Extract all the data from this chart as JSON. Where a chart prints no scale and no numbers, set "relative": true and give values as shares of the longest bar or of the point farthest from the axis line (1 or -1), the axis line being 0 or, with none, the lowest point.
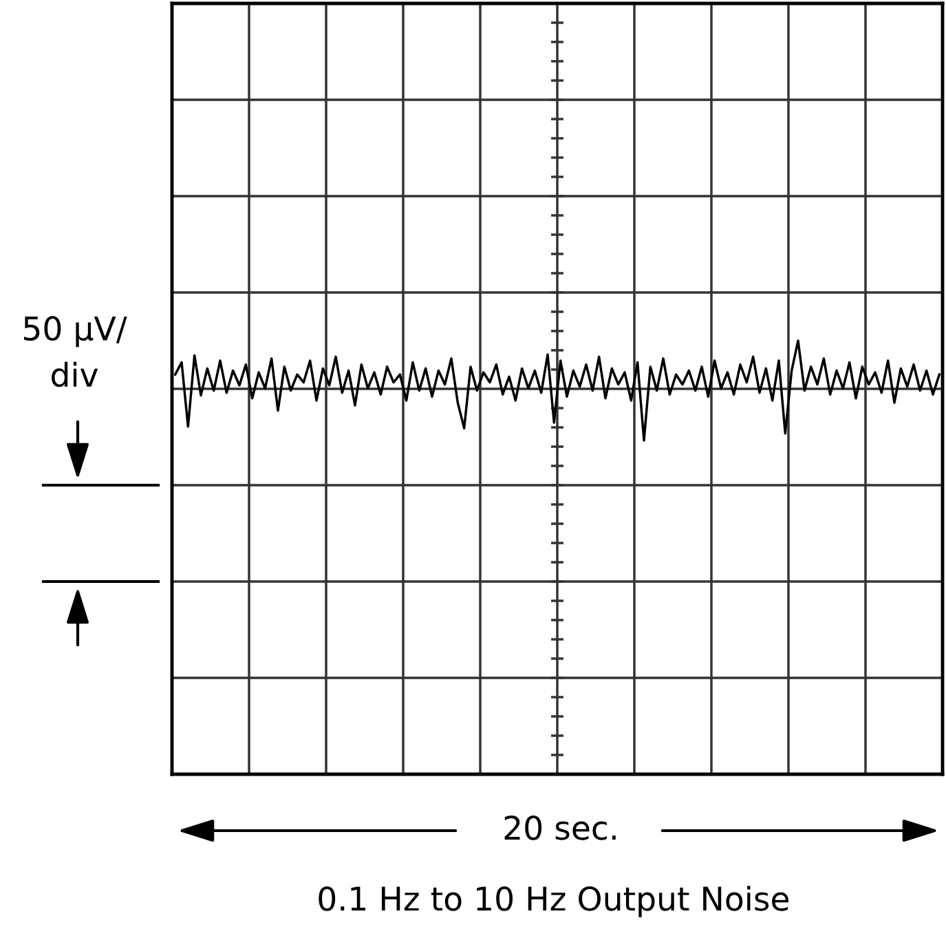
{
  "chart_data": {
    "type": "line",
    "title": "0.1 Hz to 10 Hz Output Noise",
    "relative": true,
    "grid": true,
    "annotations": [
      "50 μV/\ndiv",
      "20 sec."
    ],
    "categories": [
      null,
      null,
      null,
      null,
      null,
      null,
      null,
      null,
      null,
      null,
      null,
      null,
      null,
      null,
      null,
      null,
      null,
      null,
      null,
      null,
      null,
      null,
      null,
      null,
      null,
      null,
      null,
      null,
      null,
      null,
      null,
      null,
      null,
      null,
      null,
      null,
      null,
      null,
      null,
      null,
      null,
      null,
      null,
      null,
      null,
      null,
      null,
      null,
      null,
      null,
      null,
      null,
      null,
      null,
      null,
      null,
      null,
      null,
      null,
      null,
      null,
      null,
      null,
      null,
      null,
      null,
      null,
      null,
      null,
      null,
      null,
      null,
      null,
      null,
      null,
      null,
      null,
      null,
      null,
      null,
      null,
      null,
      null,
      null,
      null,
      null,
      null,
      null,
      null,
      null,
      null,
      null,
      null,
      null,
      null,
      null,
      null,
      null,
      null,
      null,
      null,
      null,
      null,
      null,
      null,
      null,
      null,
      null,
      null,
      null,
      null,
      null,
      null,
      null,
      null,
      null,
      null,
      null,
      null,
      null
    ],
    "series": [
      {
        "color": "#000000",
        "values": [
          0.922,
          0.95,
          0.802,
          0.966,
          0.874,
          0.936,
          0.885,
          0.954,
          0.88,
          0.931,
          0.897,
          0.945,
          0.867,
          0.927,
          0.89,
          0.959,
          0.839,
          0.94,
          0.885,
          0.922,
          0.904,
          0.954,
          0.862,
          0.936,
          0.897,
          0.963,
          0.88,
          0.931,
          0.851,
          0.945,
          0.89,
          0.927,
          0.876,
          0.94,
          0.904,
          0.922,
          0.862,
          0.95,
          0.885,
          0.936,
          0.871,
          0.931,
          0.899,
          0.959,
          0.857,
          0.798,
          0.94,
          0.885,
          0.927,
          0.904,
          0.945,
          0.876,
          0.917,
          0.862,
          0.936,
          0.89,
          0.931,
          0.88,
          0.968,
          0.811,
          0.954,
          0.871,
          0.931,
          0.894,
          0.945,
          0.885,
          0.963,
          0.867,
          0.936,
          0.899,
          0.927,
          0.862,
          0.95,
          0.77,
          0.94,
          0.885,
          0.959,
          0.876,
          0.922,
          0.899,
          0.931,
          0.885,
          0.94,
          0.871,
          0.954,
          0.89,
          0.927,
          0.876,
          0.945,
          0.904,
          0.963,
          0.88,
          0.936,
          0.862,
          0.954,
          0.786,
          0.931,
          1.0,
          0.885,
          0.94,
          0.899,
          0.959,
          0.876,
          0.931,
          0.89,
          0.95,
          0.867,
          0.94,
          0.899,
          0.927,
          0.88,
          0.954,
          0.857,
          0.936,
          0.894,
          0.945,
          0.885,
          0.931,
          0.876,
          0.922
        ]
      }
    ]
  }
}
